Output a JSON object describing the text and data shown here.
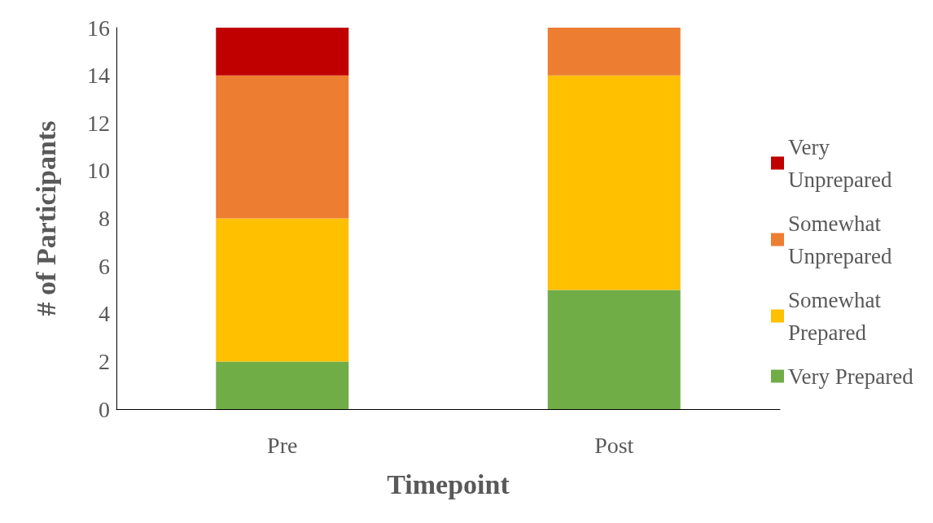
{
  "chart_data": {
    "type": "bar",
    "stacked": true,
    "xlabel": "Timepoint",
    "ylabel": "# of Participants",
    "categories": [
      "Pre",
      "Post"
    ],
    "series": [
      {
        "name": "Very Prepared",
        "color": "#70ad47",
        "values": [
          2,
          5
        ]
      },
      {
        "name": "Somewhat Prepared",
        "color": "#ffc000",
        "values": [
          6,
          9
        ]
      },
      {
        "name": "Somewhat Unprepared",
        "color": "#ed7d31",
        "values": [
          6,
          2
        ]
      },
      {
        "name": "Very Unprepared",
        "color": "#c00000",
        "values": [
          2,
          0
        ]
      }
    ],
    "ylim": [
      0,
      16
    ],
    "yticks": [
      0,
      2,
      4,
      6,
      8,
      10,
      12,
      14,
      16
    ],
    "grid": false,
    "legend": "right"
  }
}
